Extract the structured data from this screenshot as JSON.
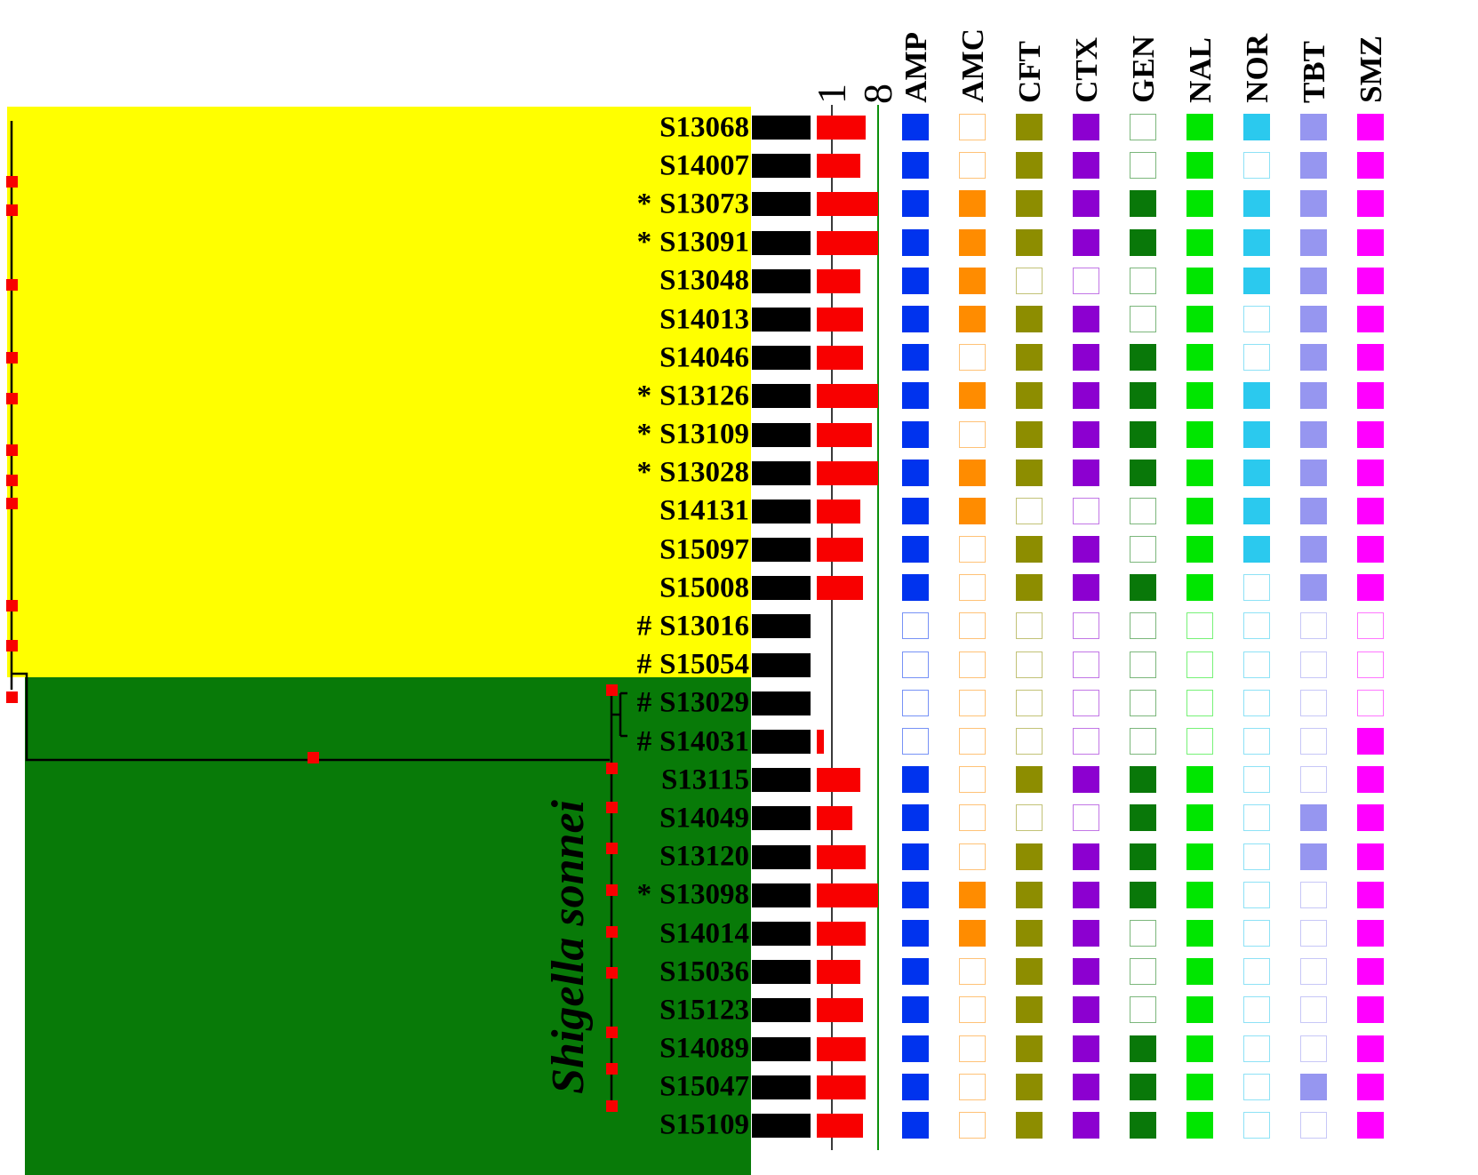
{
  "figure": {
    "clade_label": "Shigella sonnei",
    "scale_ticks": [
      "1",
      "8"
    ],
    "colors": {
      "clade_top_bg": "#FFFF00",
      "clade_sonnei_bg": "#087A08",
      "tree_marker": "#F80000",
      "black_bar": "#000000",
      "red_bar": "#F80000",
      "gridline_1": "#3A3A3A",
      "gridline_8": "#0B8F0B"
    }
  },
  "antibiotics": [
    {
      "code": "AMP",
      "color": "#0033EE"
    },
    {
      "code": "AMC",
      "color": "#FF8C00"
    },
    {
      "code": "CFT",
      "color": "#8D8D00"
    },
    {
      "code": "CTX",
      "color": "#8C00D0"
    },
    {
      "code": "GEN",
      "color": "#097809"
    },
    {
      "code": "NAL",
      "color": "#00E600"
    },
    {
      "code": "NOR",
      "color": "#2BC9EE"
    },
    {
      "code": "TBT",
      "color": "#9696F0"
    },
    {
      "code": "SMZ",
      "color": "#FF00FF"
    }
  ],
  "strains": [
    {
      "prefix": "",
      "id": "S13068",
      "clade": "top",
      "red_bar": 4.5,
      "resistance": [
        1,
        0,
        1,
        1,
        0,
        1,
        1,
        1,
        1
      ]
    },
    {
      "prefix": "",
      "id": "S14007",
      "clade": "top",
      "red_bar": 3.5,
      "resistance": [
        1,
        0,
        1,
        1,
        0,
        1,
        0,
        1,
        1
      ]
    },
    {
      "prefix": "*",
      "id": "S13073",
      "clade": "top",
      "red_bar": 8,
      "resistance": [
        1,
        1,
        1,
        1,
        1,
        1,
        1,
        1,
        1
      ]
    },
    {
      "prefix": "*",
      "id": "S13091",
      "clade": "top",
      "red_bar": 8,
      "resistance": [
        1,
        1,
        1,
        1,
        1,
        1,
        1,
        1,
        1
      ]
    },
    {
      "prefix": "",
      "id": "S13048",
      "clade": "top",
      "red_bar": 3.5,
      "resistance": [
        1,
        1,
        0,
        0,
        0,
        1,
        1,
        1,
        1
      ]
    },
    {
      "prefix": "",
      "id": "S14013",
      "clade": "top",
      "red_bar": 4,
      "resistance": [
        1,
        1,
        1,
        1,
        0,
        1,
        0,
        1,
        1
      ]
    },
    {
      "prefix": "",
      "id": "S14046",
      "clade": "top",
      "red_bar": 4,
      "resistance": [
        1,
        0,
        1,
        1,
        1,
        1,
        0,
        1,
        1
      ]
    },
    {
      "prefix": "*",
      "id": "S13126",
      "clade": "top",
      "red_bar": 8,
      "resistance": [
        1,
        1,
        1,
        1,
        1,
        1,
        1,
        1,
        1
      ]
    },
    {
      "prefix": "*",
      "id": "S13109",
      "clade": "top",
      "red_bar": 6,
      "resistance": [
        1,
        0,
        1,
        1,
        1,
        1,
        1,
        1,
        1
      ]
    },
    {
      "prefix": "*",
      "id": "S13028",
      "clade": "top",
      "red_bar": 8,
      "resistance": [
        1,
        1,
        1,
        1,
        1,
        1,
        1,
        1,
        1
      ]
    },
    {
      "prefix": "",
      "id": "S14131",
      "clade": "top",
      "red_bar": 3.5,
      "resistance": [
        1,
        1,
        0,
        0,
        0,
        1,
        1,
        1,
        1
      ]
    },
    {
      "prefix": "",
      "id": "S15097",
      "clade": "top",
      "red_bar": 4,
      "resistance": [
        1,
        0,
        1,
        1,
        0,
        1,
        1,
        1,
        1
      ]
    },
    {
      "prefix": "",
      "id": "S15008",
      "clade": "top",
      "red_bar": 4,
      "resistance": [
        1,
        0,
        1,
        1,
        1,
        1,
        0,
        1,
        1
      ]
    },
    {
      "prefix": "#",
      "id": "S13016",
      "clade": "top",
      "red_bar": 0,
      "resistance": [
        0,
        0,
        0,
        0,
        0,
        0,
        0,
        0,
        0
      ]
    },
    {
      "prefix": "#",
      "id": "S15054",
      "clade": "top",
      "red_bar": 0,
      "resistance": [
        0,
        0,
        0,
        0,
        0,
        0,
        0,
        0,
        0
      ]
    },
    {
      "prefix": "#",
      "id": "S13029",
      "clade": "sonnei",
      "red_bar": 0,
      "resistance": [
        0,
        0,
        0,
        0,
        0,
        0,
        0,
        0,
        0
      ]
    },
    {
      "prefix": "#",
      "id": "S14031",
      "clade": "sonnei",
      "red_bar": 0.7,
      "resistance": [
        0,
        0,
        0,
        0,
        0,
        0,
        0,
        0,
        1
      ]
    },
    {
      "prefix": "",
      "id": "S13115",
      "clade": "sonnei",
      "red_bar": 3.5,
      "resistance": [
        1,
        0,
        1,
        1,
        1,
        1,
        0,
        0,
        1
      ]
    },
    {
      "prefix": "",
      "id": "S14049",
      "clade": "sonnei",
      "red_bar": 2.5,
      "resistance": [
        1,
        0,
        0,
        0,
        1,
        1,
        0,
        1,
        1
      ]
    },
    {
      "prefix": "",
      "id": "S13120",
      "clade": "sonnei",
      "red_bar": 4.5,
      "resistance": [
        1,
        0,
        1,
        1,
        1,
        1,
        0,
        1,
        1
      ]
    },
    {
      "prefix": "*",
      "id": "S13098",
      "clade": "sonnei",
      "red_bar": 8,
      "resistance": [
        1,
        1,
        1,
        1,
        1,
        1,
        0,
        0,
        1
      ]
    },
    {
      "prefix": "",
      "id": "S14014",
      "clade": "sonnei",
      "red_bar": 4.5,
      "resistance": [
        1,
        1,
        1,
        1,
        0,
        1,
        0,
        0,
        1
      ]
    },
    {
      "prefix": "",
      "id": "S15036",
      "clade": "sonnei",
      "red_bar": 3.5,
      "resistance": [
        1,
        0,
        1,
        1,
        0,
        1,
        0,
        0,
        1
      ]
    },
    {
      "prefix": "",
      "id": "S15123",
      "clade": "sonnei",
      "red_bar": 4,
      "resistance": [
        1,
        0,
        1,
        1,
        0,
        1,
        0,
        0,
        1
      ]
    },
    {
      "prefix": "",
      "id": "S14089",
      "clade": "sonnei",
      "red_bar": 4.5,
      "resistance": [
        1,
        0,
        1,
        1,
        1,
        1,
        0,
        0,
        1
      ]
    },
    {
      "prefix": "",
      "id": "S15047",
      "clade": "sonnei",
      "red_bar": 4.5,
      "resistance": [
        1,
        0,
        1,
        1,
        1,
        1,
        0,
        1,
        1
      ]
    },
    {
      "prefix": "",
      "id": "S15109",
      "clade": "sonnei",
      "red_bar": 4,
      "resistance": [
        1,
        0,
        1,
        1,
        1,
        1,
        0,
        0,
        1
      ]
    }
  ],
  "chart_data": [
    {
      "type": "bar",
      "orientation": "horizontal",
      "title": "",
      "categories": [
        "S13068",
        "S14007",
        "S13073",
        "S13091",
        "S13048",
        "S14013",
        "S14046",
        "S13126",
        "S13109",
        "S13028",
        "S14131",
        "S15097",
        "S15008",
        "S13016",
        "S15054",
        "S13029",
        "S14031",
        "S13115",
        "S14049",
        "S13120",
        "S13098",
        "S14014",
        "S15036",
        "S15123",
        "S14089",
        "S15047",
        "S15109"
      ],
      "series": [
        {
          "name": "black-bar-uniform",
          "values": [
            1,
            1,
            1,
            1,
            1,
            1,
            1,
            1,
            1,
            1,
            1,
            1,
            1,
            1,
            1,
            1,
            1,
            1,
            1,
            1,
            1,
            1,
            1,
            1,
            1,
            1,
            1
          ]
        },
        {
          "name": "red-bar",
          "values": [
            4.5,
            3.5,
            8,
            8,
            3.5,
            4,
            4,
            8,
            6,
            8,
            3.5,
            4,
            4,
            0,
            0,
            0,
            0.7,
            3.5,
            2.5,
            4.5,
            8,
            4.5,
            3.5,
            4,
            4.5,
            4.5,
            4
          ]
        }
      ],
      "x_scale": "log2",
      "x_ticks": [
        1,
        8
      ]
    },
    {
      "type": "heatmap",
      "rows": [
        "S13068",
        "S14007",
        "S13073",
        "S13091",
        "S13048",
        "S14013",
        "S14046",
        "S13126",
        "S13109",
        "S13028",
        "S14131",
        "S15097",
        "S15008",
        "S13016",
        "S15054",
        "S13029",
        "S14031",
        "S13115",
        "S14049",
        "S13120",
        "S13098",
        "S14014",
        "S15036",
        "S15123",
        "S14089",
        "S15047",
        "S15109"
      ],
      "columns": [
        "AMP",
        "AMC",
        "CFT",
        "CTX",
        "GEN",
        "NAL",
        "NOR",
        "TBT",
        "SMZ"
      ],
      "values": [
        [
          1,
          0,
          1,
          1,
          0,
          1,
          1,
          1,
          1
        ],
        [
          1,
          0,
          1,
          1,
          0,
          1,
          0,
          1,
          1
        ],
        [
          1,
          1,
          1,
          1,
          1,
          1,
          1,
          1,
          1
        ],
        [
          1,
          1,
          1,
          1,
          1,
          1,
          1,
          1,
          1
        ],
        [
          1,
          1,
          0,
          0,
          0,
          1,
          1,
          1,
          1
        ],
        [
          1,
          1,
          1,
          1,
          0,
          1,
          0,
          1,
          1
        ],
        [
          1,
          0,
          1,
          1,
          1,
          1,
          0,
          1,
          1
        ],
        [
          1,
          1,
          1,
          1,
          1,
          1,
          1,
          1,
          1
        ],
        [
          1,
          0,
          1,
          1,
          1,
          1,
          1,
          1,
          1
        ],
        [
          1,
          1,
          1,
          1,
          1,
          1,
          1,
          1,
          1
        ],
        [
          1,
          1,
          0,
          0,
          0,
          1,
          1,
          1,
          1
        ],
        [
          1,
          0,
          1,
          1,
          0,
          1,
          1,
          1,
          1
        ],
        [
          1,
          0,
          1,
          1,
          1,
          1,
          0,
          1,
          1
        ],
        [
          0,
          0,
          0,
          0,
          0,
          0,
          0,
          0,
          0
        ],
        [
          0,
          0,
          0,
          0,
          0,
          0,
          0,
          0,
          0
        ],
        [
          0,
          0,
          0,
          0,
          0,
          0,
          0,
          0,
          0
        ],
        [
          0,
          0,
          0,
          0,
          0,
          0,
          0,
          0,
          1
        ],
        [
          1,
          0,
          1,
          1,
          1,
          1,
          0,
          0,
          1
        ],
        [
          1,
          0,
          0,
          0,
          1,
          1,
          0,
          1,
          1
        ],
        [
          1,
          0,
          1,
          1,
          1,
          1,
          0,
          1,
          1
        ],
        [
          1,
          1,
          1,
          1,
          1,
          1,
          0,
          0,
          1
        ],
        [
          1,
          1,
          1,
          1,
          0,
          1,
          0,
          0,
          1
        ],
        [
          1,
          0,
          1,
          1,
          0,
          1,
          0,
          0,
          1
        ],
        [
          1,
          0,
          1,
          1,
          0,
          1,
          0,
          0,
          1
        ],
        [
          1,
          0,
          1,
          1,
          1,
          1,
          0,
          0,
          1
        ],
        [
          1,
          0,
          1,
          1,
          1,
          1,
          0,
          1,
          1
        ],
        [
          1,
          0,
          1,
          1,
          1,
          1,
          0,
          0,
          1
        ]
      ],
      "cell_encoding": "1=filled square, 0=open outlined square"
    }
  ]
}
